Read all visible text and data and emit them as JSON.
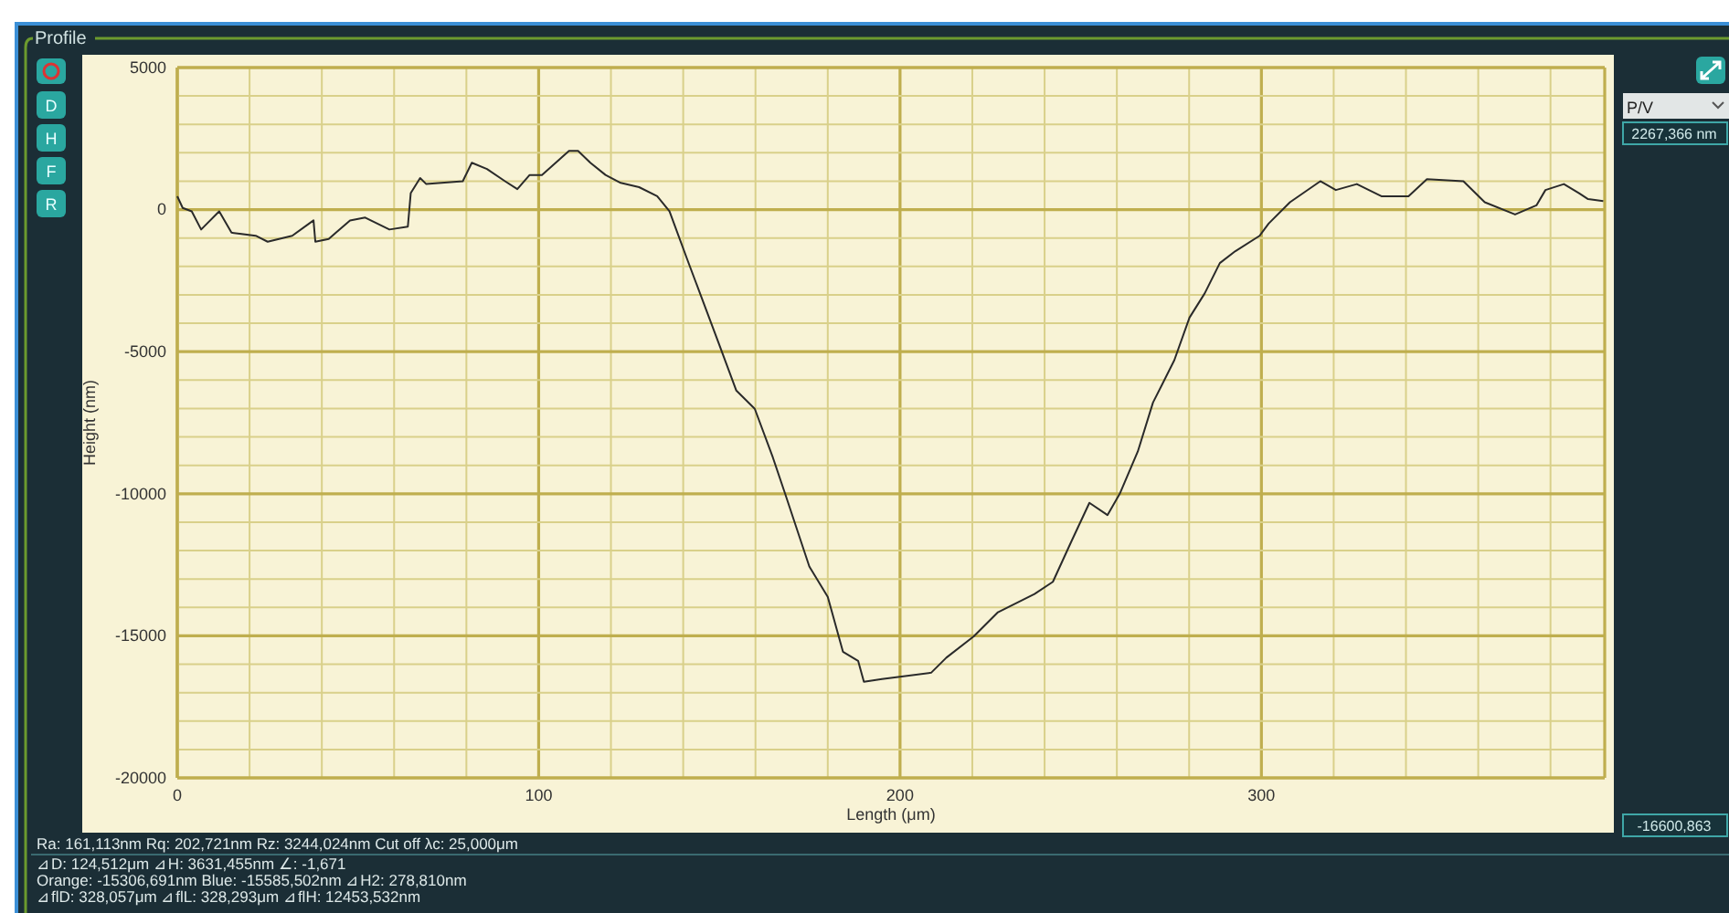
{
  "chart_data": {
    "type": "line",
    "title": "Profile",
    "xlabel": "Length (μm)",
    "ylabel": "Height (nm)",
    "xlim": [
      0,
      395
    ],
    "xticks": [
      0,
      {
        "value": 20,
        "label": null
      },
      {
        "value": 40,
        "label": null
      },
      {
        "value": 60,
        "label": null
      },
      {
        "value": 80,
        "label": null
      },
      100,
      {
        "value": 120,
        "label": null
      },
      {
        "value": 140,
        "label": null
      },
      {
        "value": 160,
        "label": null
      },
      {
        "value": 180,
        "label": null
      },
      200,
      {
        "value": 220,
        "label": null
      },
      {
        "value": 240,
        "label": null
      },
      {
        "value": 260,
        "label": null
      },
      {
        "value": 280,
        "label": null
      },
      300,
      {
        "value": 320,
        "label": null
      },
      {
        "value": 340,
        "label": null
      },
      {
        "value": 360,
        "label": null
      },
      {
        "value": 380,
        "label": null
      }
    ],
    "ylim": [
      -20000,
      5000
    ],
    "yticks": [
      -20000,
      {
        "value": -19000,
        "label": null
      },
      {
        "value": -18000,
        "label": null
      },
      {
        "value": -17000,
        "label": null
      },
      {
        "value": -16000,
        "label": null
      },
      -15000,
      {
        "value": -14000,
        "label": null
      },
      {
        "value": -13000,
        "label": null
      },
      {
        "value": -12000,
        "label": null
      },
      {
        "value": -11000,
        "label": null
      },
      -10000,
      {
        "value": -9000,
        "label": null
      },
      {
        "value": -8000,
        "label": null
      },
      {
        "value": -7000,
        "label": null
      },
      {
        "value": -6000,
        "label": null
      },
      -5000,
      {
        "value": -4000,
        "label": null
      },
      {
        "value": -3000,
        "label": null
      },
      {
        "value": -2000,
        "label": null
      },
      {
        "value": -1000,
        "label": null
      },
      0,
      {
        "value": 1000,
        "label": null
      },
      {
        "value": 2000,
        "label": null
      },
      {
        "value": 3000,
        "label": null
      },
      {
        "value": 4000,
        "label": null
      },
      5000
    ],
    "grid": true,
    "marker": "none",
    "line_style": "solid",
    "series": [
      {
        "color": "#2a2a2a",
        "x": [
          0,
          1.5,
          4,
          6.6,
          11.6,
          15,
          21.7,
          25,
          31.8,
          37.7,
          38.2,
          41.9,
          47.8,
          52,
          58.7,
          63.8,
          64.6,
          67.2,
          68.9,
          79,
          81.5,
          85.7,
          90.7,
          94.1,
          97.5,
          100.9,
          108.4,
          110.9,
          114.3,
          118.5,
          122.7,
          127.8,
          132.8,
          136.2,
          141.2,
          149.7,
          154.7,
          159.8,
          164.8,
          168.2,
          174.9,
          180,
          184.2,
          188.4,
          190,
          195,
          208.6,
          212.8,
          220.4,
          227.1,
          237.2,
          242.3,
          247.3,
          252.4,
          257.4,
          260.8,
          265.8,
          270,
          275.9,
          280.1,
          284.3,
          288.5,
          292.8,
          299.5,
          302,
          307.9,
          316.3,
          320.6,
          326.4,
          333.2,
          340.7,
          345.8,
          355.9,
          361.8,
          370.2,
          376.1,
          378.6,
          383.7,
          387.9,
          390.4,
          394.6
        ],
        "values": [
          470,
          60,
          -60,
          -700,
          -60,
          -810,
          -920,
          -1130,
          -920,
          -380,
          -1130,
          -1030,
          -380,
          -280,
          -700,
          -600,
          580,
          1110,
          900,
          1000,
          1650,
          1430,
          1000,
          720,
          1220,
          1220,
          2070,
          2070,
          1650,
          1220,
          940,
          790,
          470,
          -60,
          -1780,
          -4660,
          -6370,
          -7010,
          -8720,
          -10000,
          -12560,
          -13630,
          -15560,
          -15880,
          -16620,
          -16520,
          -16300,
          -15770,
          -15020,
          -14170,
          -13530,
          -13100,
          -11710,
          -10320,
          -10750,
          -10000,
          -8510,
          -6790,
          -5300,
          -3800,
          -2950,
          -1880,
          -1460,
          -920,
          -490,
          260,
          1000,
          690,
          900,
          470,
          470,
          1070,
          1000,
          260,
          -170,
          150,
          690,
          900,
          580,
          370,
          300
        ]
      }
    ],
    "annotations": [
      "P/V",
      "2267,366 nm",
      "-16600,863",
      "Ra: 161,113nm Rq: 202,721nm Rz: 3244,024nm Cut off  λc: 25,000μm",
      "⊿D: 124,512μm ⊿H: 3631,455nm ∠: -1,671",
      "Orange: -15306,691nm Blue: -15585,502nm ⊿H2: 278,810nm",
      "⊿flD: 328,057μm ⊿flL: 328,293μm ⊿flH: 12453,532nm",
      "D",
      "H",
      "F",
      "R"
    ]
  }
}
